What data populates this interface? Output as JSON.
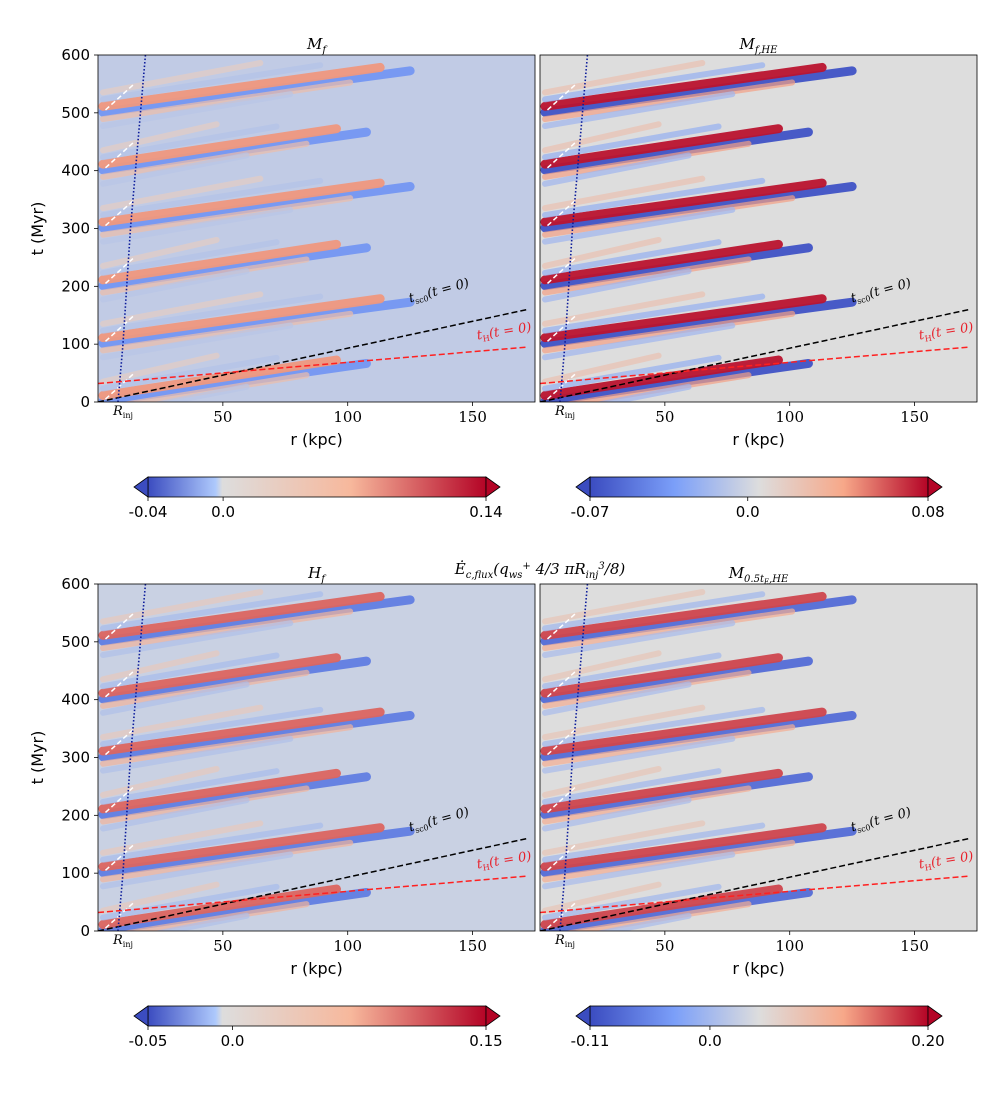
{
  "figure": {
    "shared_title": "Ė c,flux (q ws⁺ 4/3 π R inj³ / 8)",
    "shared_title_main": "Ė",
    "shared_title_sub": "c,flux",
    "shared_title_rest": "(q",
    "shared_title_sub2": "ws",
    "shared_title_sup2": "+",
    "shared_title_frac": "4/3",
    "shared_title_rest2": "πR",
    "shared_title_sub3": "inj",
    "shared_title_sup3": "3",
    "shared_title_end": "/8)"
  },
  "colors": {
    "neg_strong": "#3b4cc0",
    "neutral": "#dddddd",
    "pos_strong": "#b40426",
    "tsc_line": "#000000",
    "tH_line": "#ff2020",
    "Rinj_line": "#0a1a9a",
    "label_tH": "#e8202a"
  },
  "chart_data": [
    {
      "type": "heatmap",
      "title": "M",
      "title_sub": "f",
      "xlabel": "r (kpc)",
      "ylabel": "t (Myr)",
      "xlim": [
        0,
        175
      ],
      "ylim": [
        0,
        600
      ],
      "xticks": [
        50,
        100,
        150
      ],
      "yticks": [
        0,
        100,
        200,
        300,
        400,
        500,
        600
      ],
      "colorbar": {
        "min": -0.04,
        "max": 0.14,
        "ticks": [
          "-0.04",
          "0.0",
          "0.14"
        ]
      },
      "background_value": -0.008,
      "stripe_strength": 0.55,
      "annotations": {
        "tsc": "t",
        "tsc_sub": "sc0",
        "tsc_rest": "(t = 0)",
        "tH": "t",
        "tH_sub": "H",
        "tH_rest": "(t = 0)",
        "rinj": "R",
        "rinj_sub": "inj"
      }
    },
    {
      "type": "heatmap",
      "title": "M",
      "title_sub": "f,HE",
      "xlabel": "r (kpc)",
      "ylabel": "",
      "xlim": [
        0,
        175
      ],
      "ylim": [
        0,
        600
      ],
      "xticks": [
        50,
        100,
        150
      ],
      "yticks": [],
      "colorbar": {
        "min": -0.07,
        "max": 0.08,
        "ticks": [
          "-0.07",
          "0.0",
          "0.08"
        ]
      },
      "background_value": 0.0,
      "stripe_strength": 0.95,
      "annotations": {
        "tsc": "t",
        "tsc_sub": "sc0",
        "tsc_rest": "(t = 0)",
        "tH": "t",
        "tH_sub": "H",
        "tH_rest": "(t = 0)",
        "rinj": "R",
        "rinj_sub": "inj"
      }
    },
    {
      "type": "heatmap",
      "title": "H",
      "title_sub": "f",
      "xlabel": "r (kpc)",
      "ylabel": "t (Myr)",
      "xlim": [
        0,
        175
      ],
      "ylim": [
        0,
        600
      ],
      "xticks": [
        50,
        100,
        150
      ],
      "yticks": [
        0,
        100,
        200,
        300,
        400,
        500,
        600
      ],
      "colorbar": {
        "min": -0.05,
        "max": 0.15,
        "ticks": [
          "-0.05",
          "0.0",
          "0.15"
        ]
      },
      "background_value": -0.006,
      "stripe_strength": 0.7,
      "annotations": {
        "tsc": "t",
        "tsc_sub": "sc0",
        "tsc_rest": "(t = 0)",
        "tH": "t",
        "tH_sub": "H",
        "tH_rest": "(t = 0)",
        "rinj": "R",
        "rinj_sub": "inj"
      }
    },
    {
      "type": "heatmap",
      "title": "M",
      "title_sub": "0.5t",
      "title_subsub": "E",
      "title_sub_end": ",HE",
      "xlabel": "r (kpc)",
      "ylabel": "",
      "xlim": [
        0,
        175
      ],
      "ylim": [
        0,
        600
      ],
      "xticks": [
        50,
        100,
        150
      ],
      "yticks": [],
      "colorbar": {
        "min": -0.11,
        "max": 0.2,
        "ticks": [
          "-0.11",
          "0.0",
          "0.20"
        ]
      },
      "background_value": 0.0,
      "stripe_strength": 0.8,
      "annotations": {
        "tsc": "t",
        "tsc_sub": "sc0",
        "tsc_rest": "(t = 0)",
        "tH": "t",
        "tH_sub": "H",
        "tH_rest": "(t = 0)",
        "rinj": "R",
        "rinj_sub": "inj"
      }
    }
  ],
  "bands": {
    "injection_times_myr": [
      0,
      100,
      200,
      300,
      400,
      500
    ],
    "slope_myr_per_kpc": 0.62,
    "tsc_line": {
      "r": [
        0,
        172
      ],
      "t": [
        0,
        160
      ]
    },
    "tH_line": {
      "r": [
        0,
        172
      ],
      "t": [
        32,
        95
      ]
    },
    "rinj_curve": {
      "r": [
        8,
        10,
        13,
        19
      ],
      "t": [
        0,
        100,
        300,
        600
      ]
    }
  }
}
